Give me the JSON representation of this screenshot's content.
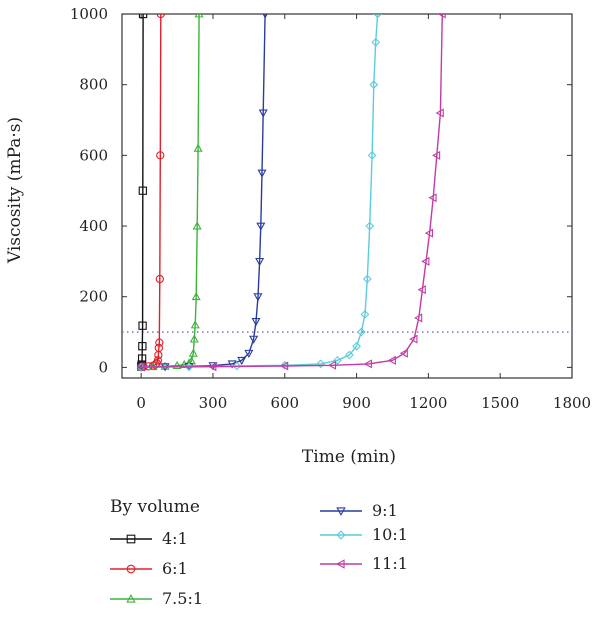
{
  "chart_data": {
    "type": "line",
    "xlabel": "Time (min)",
    "ylabel": "Viscosity (mPa·s)",
    "xlim": [
      -80,
      1800
    ],
    "ylim": [
      -30,
      1000
    ],
    "xticks": [
      0,
      300,
      600,
      900,
      1200,
      1500,
      1800
    ],
    "yticks": [
      0,
      200,
      400,
      600,
      800,
      1000
    ],
    "reference_line": {
      "y": 100,
      "style": "dotted",
      "color": "#4a4aa0"
    },
    "legend": {
      "title": "By volume",
      "placement": "bottom"
    },
    "series": [
      {
        "name": "4:1",
        "color": "#111111",
        "marker": "square",
        "x": [
          0,
          2,
          4,
          5,
          6,
          7,
          8
        ],
        "y": [
          2,
          8,
          25,
          60,
          118,
          500,
          1000
        ]
      },
      {
        "name": "6:1",
        "color": "#e0202a",
        "marker": "circle",
        "x": [
          0,
          10,
          30,
          50,
          60,
          65,
          70,
          72,
          74,
          76,
          78,
          80,
          82
        ],
        "y": [
          1,
          2,
          3,
          5,
          8,
          12,
          20,
          35,
          55,
          70,
          250,
          600,
          1000
        ]
      },
      {
        "name": "7.5:1",
        "color": "#3db33d",
        "marker": "triangle-up",
        "x": [
          0,
          50,
          100,
          150,
          180,
          200,
          210,
          218,
          222,
          226,
          230,
          234,
          238,
          242
        ],
        "y": [
          1,
          2,
          3,
          5,
          8,
          12,
          18,
          40,
          80,
          120,
          200,
          400,
          620,
          1000
        ]
      },
      {
        "name": "9:1",
        "color": "#2a3d9c",
        "marker": "triangle-down",
        "x": [
          0,
          100,
          200,
          300,
          380,
          420,
          450,
          470,
          480,
          488,
          495,
          500,
          505,
          510,
          518
        ],
        "y": [
          1,
          2,
          3,
          5,
          10,
          20,
          40,
          80,
          130,
          200,
          300,
          400,
          550,
          720,
          1000
        ]
      },
      {
        "name": "10:1",
        "color": "#5ccbdc",
        "marker": "diamond",
        "x": [
          0,
          200,
          400,
          600,
          750,
          820,
          870,
          900,
          920,
          935,
          945,
          955,
          965,
          972,
          980,
          988
        ],
        "y": [
          1,
          2,
          4,
          6,
          10,
          20,
          35,
          60,
          100,
          150,
          250,
          400,
          600,
          800,
          920,
          1000
        ]
      },
      {
        "name": "11:1",
        "color": "#c23aa5",
        "marker": "triangle-left",
        "x": [
          0,
          300,
          600,
          800,
          950,
          1050,
          1100,
          1140,
          1160,
          1175,
          1190,
          1205,
          1220,
          1235,
          1250,
          1258
        ],
        "y": [
          1,
          2,
          4,
          6,
          10,
          20,
          40,
          80,
          140,
          220,
          300,
          380,
          480,
          600,
          720,
          1000
        ]
      }
    ]
  }
}
